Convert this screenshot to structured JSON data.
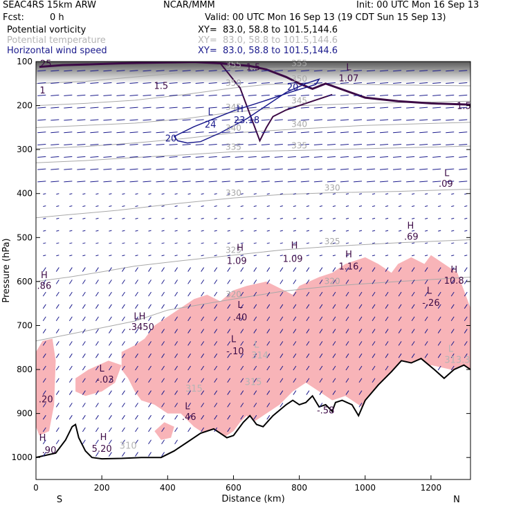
{
  "header": {
    "model": "SEAC4RS 15km ARW",
    "org": "NCAR/MMM",
    "init": "Init: 00 UTC Mon 16 Sep 13",
    "fcst_label": "Fcst:",
    "fcst_value": "0 h",
    "valid": "Valid: 00 UTC Mon 16 Sep 13 (19 CDT Sun 15 Sep 13)"
  },
  "fields": [
    {
      "name": "Potential vorticity",
      "xy": "XY=  83.0, 58.8 to 101.5,144.6",
      "color": "#000000"
    },
    {
      "name": "Potential temperature",
      "xy": "XY=  83.0, 58.8 to 101.5,144.6",
      "color": "#b4b4b4"
    },
    {
      "name": "Horizontal wind speed",
      "xy": "XY=  83.0, 58.8 to 101.5,144.6",
      "color": "#1a1a8c"
    }
  ],
  "colors": {
    "pv_line": "#3c0a46",
    "theta_line": "#a8a8a8",
    "wind": "#1a1a8c",
    "cloud_fill": "#f8b4b8",
    "terrain_line": "#000000"
  },
  "chart_data": {
    "type": "cross-section",
    "xlabel": "Distance (km)",
    "ylabel": "Pressure (hPa)",
    "x_ticks": [
      0,
      200,
      400,
      600,
      800,
      1000,
      1200
    ],
    "y_ticks": [
      100,
      200,
      300,
      400,
      500,
      600,
      700,
      800,
      900,
      1000
    ],
    "xlim": [
      0,
      1320
    ],
    "ylim": [
      1050,
      100
    ],
    "end_labels": {
      "left": "S",
      "right": "N"
    },
    "theta_isentropes": [
      {
        "value": "355",
        "points": [
          [
            0,
            150
          ],
          [
            150,
            145
          ],
          [
            300,
            135
          ],
          [
            450,
            125
          ],
          [
            600,
            118
          ],
          [
            800,
            115
          ],
          [
            1000,
            118
          ],
          [
            1320,
            125
          ]
        ]
      },
      {
        "value": "350",
        "points": [
          [
            0,
            200
          ],
          [
            150,
            195
          ],
          [
            300,
            188
          ],
          [
            450,
            175
          ],
          [
            600,
            160
          ],
          [
            700,
            152
          ],
          [
            800,
            150
          ],
          [
            1000,
            152
          ],
          [
            1320,
            155
          ]
        ]
      },
      {
        "value": "345",
        "points": [
          [
            0,
            250
          ],
          [
            150,
            245
          ],
          [
            300,
            240
          ],
          [
            450,
            230
          ],
          [
            600,
            215
          ],
          [
            800,
            200
          ],
          [
            1000,
            195
          ],
          [
            1320,
            190
          ]
        ]
      },
      {
        "value": "340",
        "points": [
          [
            0,
            298
          ],
          [
            150,
            293
          ],
          [
            300,
            285
          ],
          [
            450,
            275
          ],
          [
            600,
            262
          ],
          [
            800,
            253
          ],
          [
            1000,
            245
          ],
          [
            1320,
            238
          ]
        ]
      },
      {
        "value": "335",
        "points": [
          [
            0,
            330
          ],
          [
            150,
            325
          ],
          [
            300,
            318
          ],
          [
            450,
            312
          ],
          [
            600,
            305
          ],
          [
            800,
            302
          ],
          [
            1000,
            298
          ],
          [
            1320,
            292
          ]
        ]
      },
      {
        "value": "330",
        "points": [
          [
            0,
            455
          ],
          [
            100,
            448
          ],
          [
            250,
            438
          ],
          [
            400,
            425
          ],
          [
            600,
            410
          ],
          [
            750,
            402
          ],
          [
            900,
            398
          ],
          [
            1100,
            395
          ],
          [
            1320,
            390
          ]
        ]
      },
      {
        "value": "325",
        "points": [
          [
            0,
            600
          ],
          [
            100,
            590
          ],
          [
            200,
            578
          ],
          [
            300,
            565
          ],
          [
            450,
            552
          ],
          [
            600,
            540
          ],
          [
            750,
            528
          ],
          [
            900,
            520
          ],
          [
            1100,
            512
          ],
          [
            1320,
            505
          ]
        ]
      },
      {
        "value": "320",
        "points": [
          [
            0,
            735
          ],
          [
            100,
            720
          ],
          [
            200,
            705
          ],
          [
            300,
            690
          ],
          [
            400,
            665
          ],
          [
            600,
            640
          ],
          [
            750,
            622
          ],
          [
            900,
            610
          ],
          [
            1100,
            600
          ],
          [
            1320,
            590
          ]
        ]
      }
    ],
    "pv_1p5": [
      [
        10,
        112
      ],
      [
        80,
        108
      ],
      [
        180,
        106
      ],
      [
        260,
        104
      ],
      [
        320,
        103
      ],
      [
        400,
        102
      ],
      [
        480,
        101
      ],
      [
        560,
        104
      ],
      [
        650,
        110
      ],
      [
        700,
        118
      ],
      [
        760,
        135
      ],
      [
        800,
        150
      ],
      [
        840,
        162
      ],
      [
        880,
        150
      ],
      [
        1000,
        182
      ],
      [
        1100,
        190
      ],
      [
        1200,
        195
      ],
      [
        1320,
        198
      ]
    ],
    "pv_1p5_dip": [
      [
        560,
        104
      ],
      [
        620,
        160
      ],
      [
        660,
        240
      ],
      [
        680,
        280
      ],
      [
        700,
        250
      ],
      [
        720,
        225
      ],
      [
        760,
        210
      ],
      [
        840,
        190
      ],
      [
        900,
        175
      ]
    ],
    "wind_20_contour": [
      [
        420,
        270
      ],
      [
        480,
        248
      ],
      [
        540,
        230
      ],
      [
        600,
        212
      ],
      [
        700,
        188
      ],
      [
        780,
        168
      ],
      [
        850,
        152
      ],
      [
        860,
        140
      ],
      [
        820,
        150
      ],
      [
        760,
        170
      ],
      [
        700,
        200
      ],
      [
        640,
        230
      ],
      [
        560,
        262
      ],
      [
        500,
        282
      ],
      [
        460,
        285
      ],
      [
        430,
        280
      ]
    ],
    "cloud_regions": [
      [
        [
          0,
          760
        ],
        [
          20,
          735
        ],
        [
          50,
          730
        ],
        [
          60,
          780
        ],
        [
          55,
          880
        ],
        [
          40,
          940
        ],
        [
          10,
          950
        ],
        [
          0,
          930
        ]
      ],
      [
        [
          120,
          820
        ],
        [
          160,
          800
        ],
        [
          220,
          780
        ],
        [
          260,
          790
        ],
        [
          240,
          830
        ],
        [
          200,
          850
        ],
        [
          150,
          860
        ],
        [
          120,
          850
        ]
      ],
      [
        [
          260,
          760
        ],
        [
          300,
          745
        ],
        [
          330,
          730
        ],
        [
          360,
          700
        ],
        [
          400,
          680
        ],
        [
          440,
          660
        ],
        [
          480,
          640
        ],
        [
          520,
          630
        ],
        [
          560,
          645
        ],
        [
          600,
          620
        ],
        [
          640,
          610
        ],
        [
          700,
          600
        ],
        [
          740,
          615
        ],
        [
          780,
          630
        ],
        [
          800,
          610
        ],
        [
          860,
          590
        ],
        [
          900,
          580
        ],
        [
          940,
          560
        ],
        [
          1000,
          545
        ],
        [
          1040,
          560
        ],
        [
          1080,
          580
        ],
        [
          1100,
          560
        ],
        [
          1140,
          545
        ],
        [
          1180,
          560
        ],
        [
          1200,
          540
        ],
        [
          1240,
          560
        ],
        [
          1280,
          580
        ],
        [
          1300,
          620
        ],
        [
          1320,
          660
        ],
        [
          1320,
          820
        ],
        [
          1260,
          800
        ],
        [
          1200,
          790
        ],
        [
          1140,
          830
        ],
        [
          1100,
          840
        ],
        [
          1060,
          880
        ],
        [
          1020,
          900
        ],
        [
          980,
          880
        ],
        [
          940,
          860
        ],
        [
          900,
          870
        ],
        [
          860,
          850
        ],
        [
          820,
          830
        ],
        [
          780,
          850
        ],
        [
          740,
          880
        ],
        [
          700,
          900
        ],
        [
          660,
          920
        ],
        [
          640,
          905
        ],
        [
          620,
          920
        ],
        [
          600,
          940
        ],
        [
          560,
          960
        ],
        [
          520,
          950
        ],
        [
          480,
          930
        ],
        [
          440,
          900
        ],
        [
          400,
          900
        ],
        [
          360,
          880
        ],
        [
          320,
          870
        ],
        [
          300,
          850
        ],
        [
          280,
          820
        ],
        [
          260,
          800
        ]
      ],
      [
        [
          1140,
          620
        ],
        [
          1170,
          590
        ],
        [
          1210,
          580
        ],
        [
          1250,
          600
        ],
        [
          1260,
          650
        ],
        [
          1230,
          680
        ],
        [
          1200,
          700
        ],
        [
          1170,
          690
        ],
        [
          1150,
          660
        ]
      ],
      [
        [
          360,
          940
        ],
        [
          390,
          920
        ],
        [
          420,
          930
        ],
        [
          410,
          955
        ],
        [
          380,
          960
        ]
      ]
    ],
    "terrain": [
      [
        0,
        1000
      ],
      [
        30,
        995
      ],
      [
        60,
        990
      ],
      [
        90,
        960
      ],
      [
        110,
        930
      ],
      [
        120,
        925
      ],
      [
        130,
        955
      ],
      [
        150,
        985
      ],
      [
        170,
        1000
      ],
      [
        200,
        1003
      ],
      [
        260,
        1002
      ],
      [
        320,
        1000
      ],
      [
        380,
        1000
      ],
      [
        420,
        985
      ],
      [
        460,
        965
      ],
      [
        500,
        945
      ],
      [
        540,
        935
      ],
      [
        560,
        945
      ],
      [
        580,
        955
      ],
      [
        600,
        950
      ],
      [
        630,
        920
      ],
      [
        650,
        905
      ],
      [
        670,
        925
      ],
      [
        690,
        930
      ],
      [
        720,
        905
      ],
      [
        760,
        880
      ],
      [
        780,
        870
      ],
      [
        800,
        880
      ],
      [
        820,
        875
      ],
      [
        840,
        860
      ],
      [
        860,
        885
      ],
      [
        880,
        880
      ],
      [
        900,
        895
      ],
      [
        910,
        875
      ],
      [
        930,
        870
      ],
      [
        960,
        880
      ],
      [
        980,
        905
      ],
      [
        1000,
        870
      ],
      [
        1040,
        835
      ],
      [
        1080,
        805
      ],
      [
        1110,
        780
      ],
      [
        1140,
        785
      ],
      [
        1170,
        775
      ],
      [
        1210,
        800
      ],
      [
        1240,
        820
      ],
      [
        1270,
        800
      ],
      [
        1300,
        790
      ],
      [
        1320,
        800
      ]
    ],
    "annotations": [
      {
        "text": "25",
        "x": 30,
        "p": 112,
        "color": "#3c0a46"
      },
      {
        "text": "1",
        "x": 20,
        "p": 172,
        "color": "#3c0a46"
      },
      {
        "text": "1.5",
        "x": 380,
        "p": 162,
        "color": "#3c0a46"
      },
      {
        "text": "1.5",
        "x": 660,
        "p": 120,
        "color": "#3c0a46"
      },
      {
        "text": "1.5",
        "x": 1300,
        "p": 208,
        "color": "#3c0a46"
      },
      {
        "text": "L",
        "x": 950,
        "p": 120,
        "color": "#3c0a46"
      },
      {
        "text": "1.07",
        "x": 950,
        "p": 145,
        "color": "#3c0a46"
      },
      {
        "text": "20",
        "x": 780,
        "p": 165,
        "color": "#1a1a8c"
      },
      {
        "text": "L",
        "x": 530,
        "p": 222,
        "color": "#1a1a8c"
      },
      {
        "text": "24",
        "x": 530,
        "p": 250,
        "color": "#1a1a8c"
      },
      {
        "text": "H",
        "x": 620,
        "p": 215,
        "color": "#1a1a8c"
      },
      {
        "text": "23.18",
        "x": 640,
        "p": 240,
        "color": "#1a1a8c"
      },
      {
        "text": "20",
        "x": 410,
        "p": 282,
        "color": "#1a1a8c"
      },
      {
        "text": "L",
        "x": 1248,
        "p": 360,
        "color": "#3c0a46"
      },
      {
        "text": ".09",
        "x": 1245,
        "p": 385,
        "color": "#3c0a46"
      },
      {
        "text": "H",
        "x": 1138,
        "p": 480,
        "color": "#3c0a46"
      },
      {
        "text": ".69",
        "x": 1140,
        "p": 505,
        "color": "#3c0a46"
      },
      {
        "text": "H",
        "x": 620,
        "p": 530,
        "color": "#3c0a46"
      },
      {
        "text": "1.09",
        "x": 610,
        "p": 560,
        "color": "#3c0a46"
      },
      {
        "text": "H",
        "x": 785,
        "p": 525,
        "color": "#3c0a46"
      },
      {
        "text": "1.09",
        "x": 780,
        "p": 555,
        "color": "#3c0a46"
      },
      {
        "text": "H",
        "x": 950,
        "p": 545,
        "color": "#3c0a46"
      },
      {
        "text": "1.16",
        "x": 950,
        "p": 573,
        "color": "#3c0a46"
      },
      {
        "text": "H",
        "x": 25,
        "p": 592,
        "color": "#3c0a46"
      },
      {
        "text": ".86",
        "x": 25,
        "p": 617,
        "color": "#3c0a46"
      },
      {
        "text": "H",
        "x": 1270,
        "p": 580,
        "color": "#3c0a46"
      },
      {
        "text": "10.8",
        "x": 1270,
        "p": 605,
        "color": "#3c0a46"
      },
      {
        "text": "L",
        "x": 1195,
        "p": 628,
        "color": "#3c0a46"
      },
      {
        "text": "-.26",
        "x": 1200,
        "p": 655,
        "color": "#3c0a46"
      },
      {
        "text": "L",
        "x": 620,
        "p": 660,
        "color": "#3c0a46"
      },
      {
        "text": ".40",
        "x": 620,
        "p": 688,
        "color": "#3c0a46"
      },
      {
        "text": "LH",
        "x": 315,
        "p": 686,
        "color": "#3c0a46"
      },
      {
        "text": ".3450",
        "x": 320,
        "p": 710,
        "color": "#3c0a46"
      },
      {
        "text": "L",
        "x": 600,
        "p": 738,
        "color": "#3c0a46"
      },
      {
        "text": "-.10",
        "x": 605,
        "p": 765,
        "color": "#3c0a46"
      },
      {
        "text": "L",
        "x": 200,
        "p": 805,
        "color": "#3c0a46"
      },
      {
        "text": "-.03",
        "x": 210,
        "p": 830,
        "color": "#3c0a46"
      },
      {
        "text": ".20",
        "x": 30,
        "p": 875,
        "color": "#3c0a46"
      },
      {
        "text": "L",
        "x": 460,
        "p": 890,
        "color": "#3c0a46"
      },
      {
        "text": ".46",
        "x": 465,
        "p": 915,
        "color": "#3c0a46"
      },
      {
        "text": "-.58",
        "x": 880,
        "p": 900,
        "color": "#3c0a46"
      },
      {
        "text": "H",
        "x": 205,
        "p": 960,
        "color": "#3c0a46"
      },
      {
        "text": "5.20",
        "x": 200,
        "p": 987,
        "color": "#3c0a46"
      },
      {
        "text": "H",
        "x": 20,
        "p": 962,
        "color": "#3c0a46"
      },
      {
        "text": ".90",
        "x": 40,
        "p": 990,
        "color": "#3c0a46"
      },
      {
        "text": "310",
        "x": 280,
        "p": 980,
        "color": "#b4b4b4"
      },
      {
        "text": "315",
        "x": 480,
        "p": 850,
        "color": "#b4b4b4"
      },
      {
        "text": "315",
        "x": 660,
        "p": 835,
        "color": "#b4b4b4"
      },
      {
        "text": "L",
        "x": 1260,
        "p": 760,
        "color": "#b4b4b4"
      },
      {
        "text": "313.3",
        "x": 1280,
        "p": 785,
        "color": "#b4b4b4"
      },
      {
        "text": "L",
        "x": 670,
        "p": 750,
        "color": "#b4b4b4"
      },
      {
        "text": "314",
        "x": 680,
        "p": 775,
        "color": "#b4b4b4"
      }
    ]
  }
}
